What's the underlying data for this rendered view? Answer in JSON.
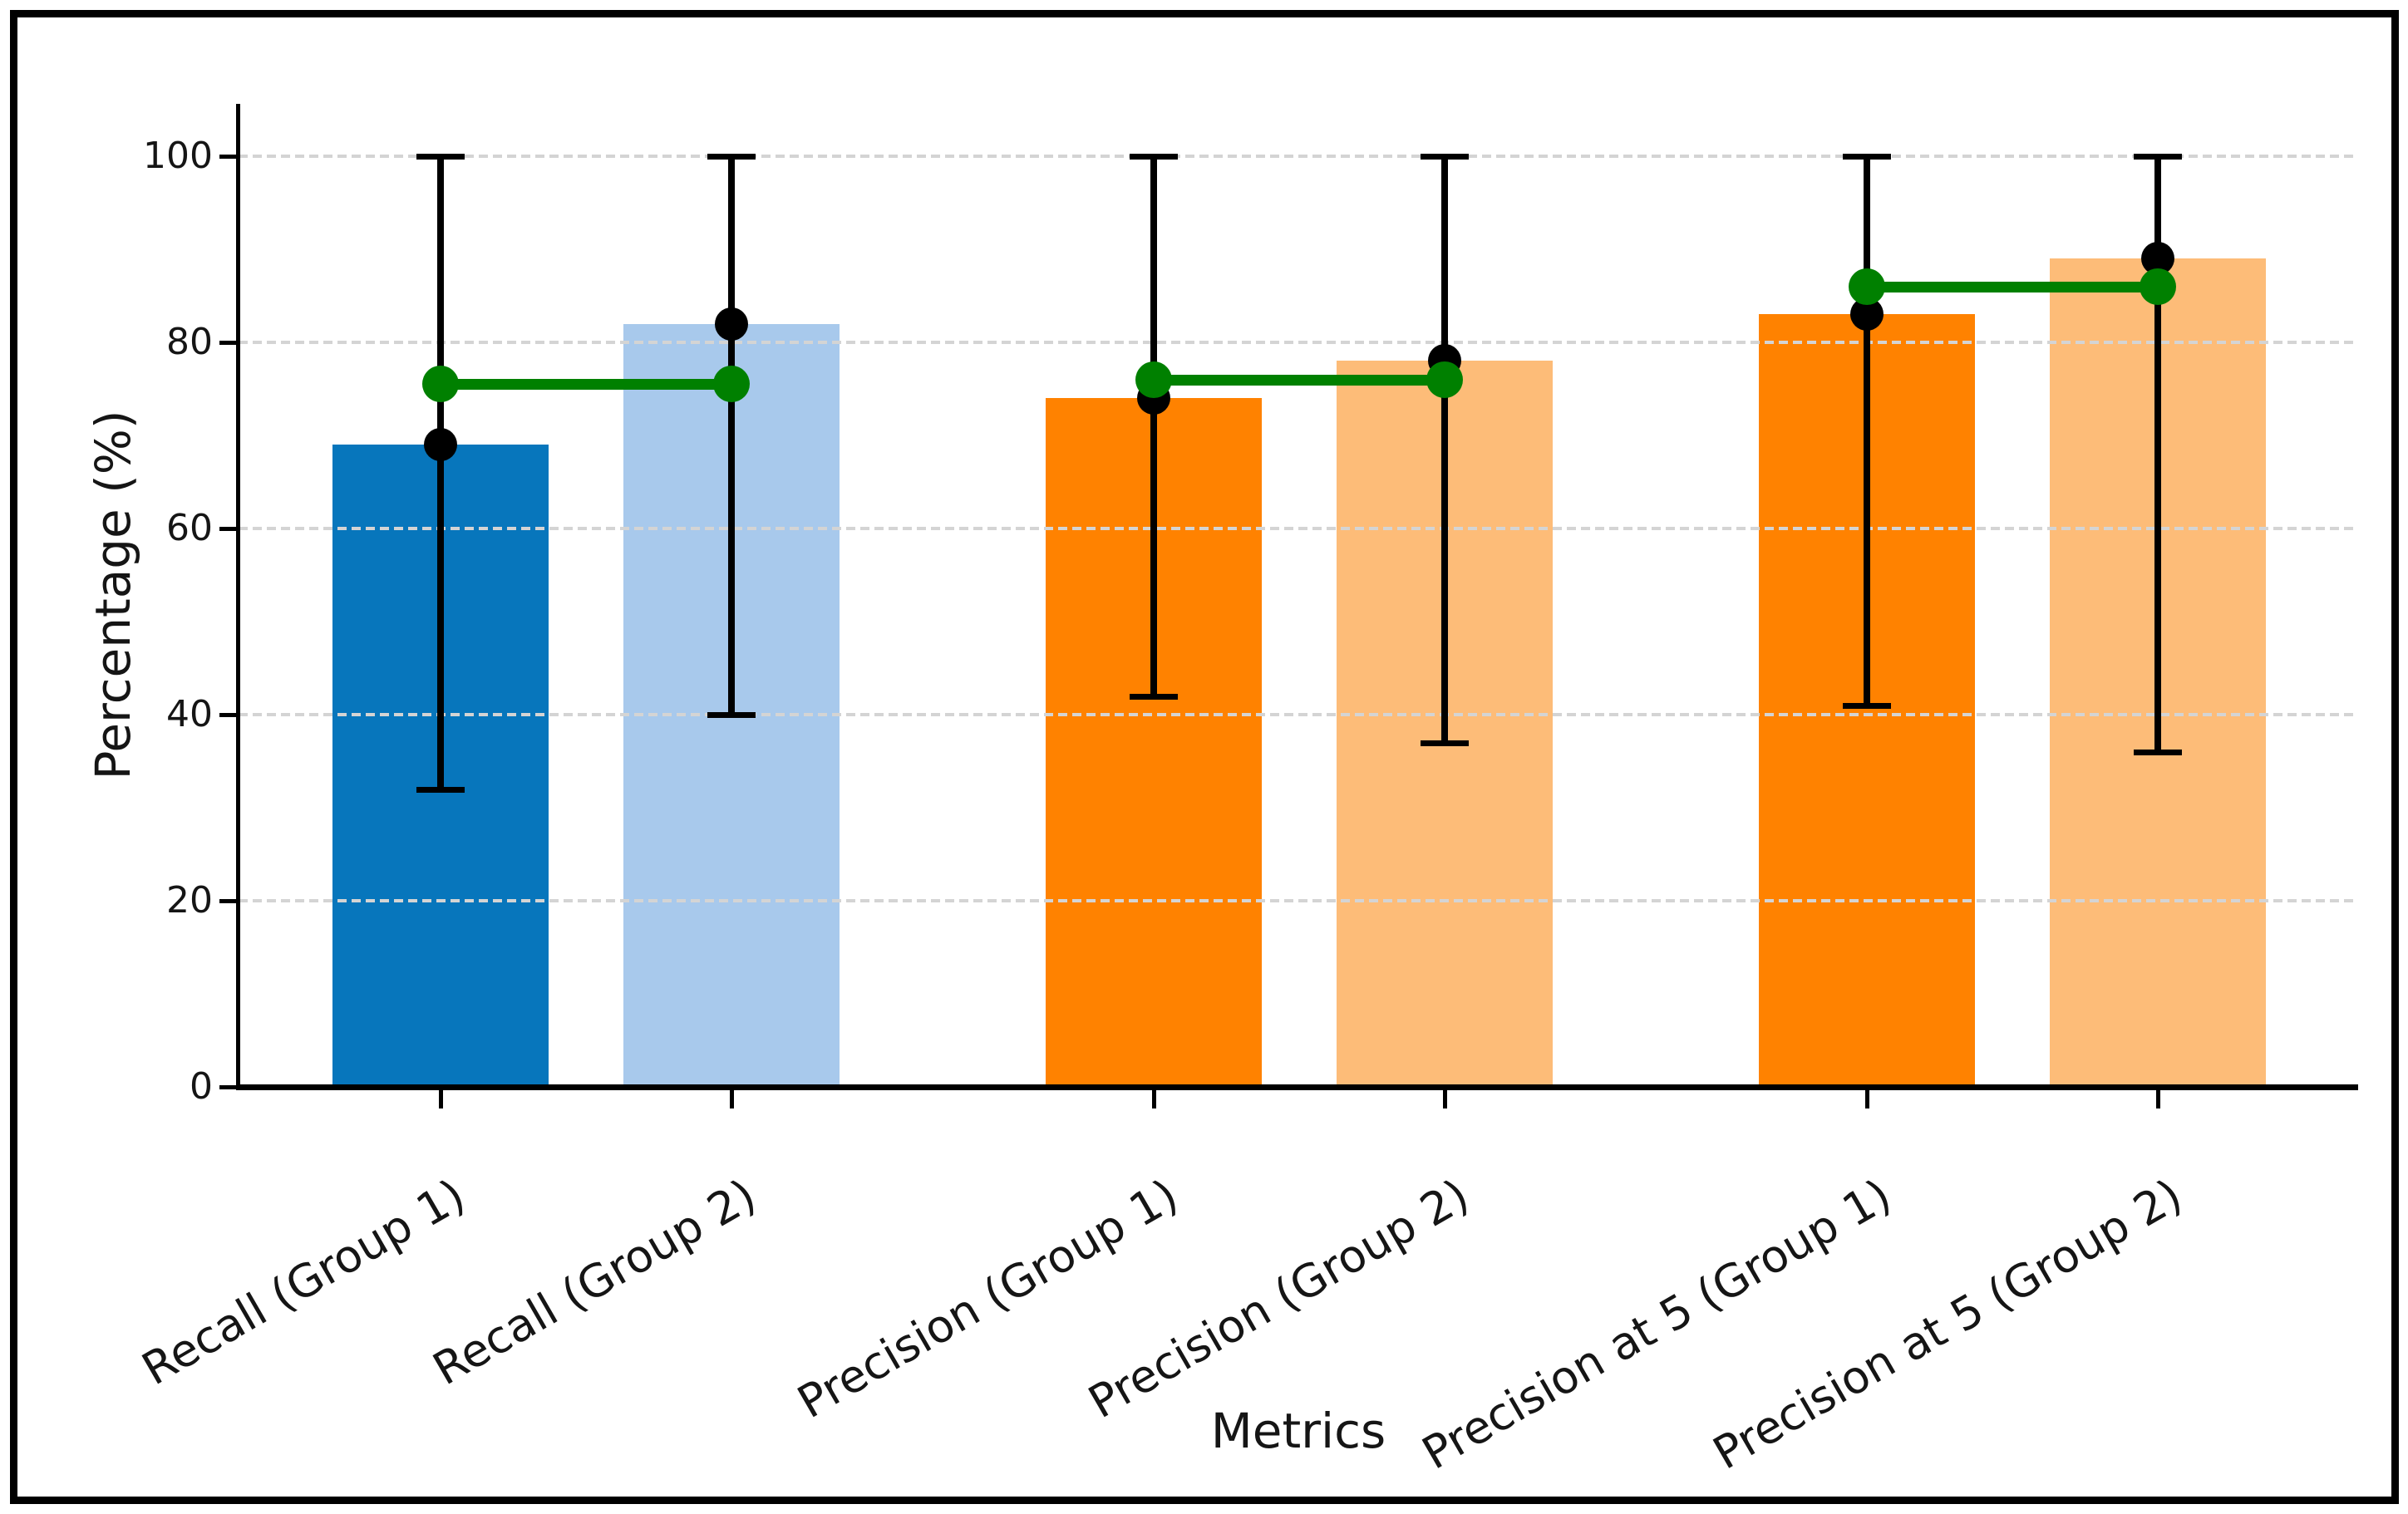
{
  "chart_data": {
    "type": "bar",
    "title": "",
    "xlabel": "Metrics",
    "ylabel": "Percentage (%)",
    "ylim": [
      0,
      100
    ],
    "yticks": [
      0,
      20,
      40,
      60,
      80,
      100
    ],
    "grid": "horizontal-dashed",
    "legend_position": "none",
    "categories": [
      "Recall (Group 1)",
      "Recall (Group 2)",
      "Precision (Group 1)",
      "Precision (Group 2)",
      "Precision at 5 (Group 1)",
      "Precision at 5 (Group 2)"
    ],
    "bars": [
      {
        "label": "Recall (Group 1)",
        "value": 69,
        "error_low": 32,
        "error_high": 100,
        "color": "#0776bc"
      },
      {
        "label": "Recall (Group 2)",
        "value": 82,
        "error_low": 40,
        "error_high": 100,
        "color": "#a8c9ec"
      },
      {
        "label": "Precision (Group 1)",
        "value": 74,
        "error_low": 42,
        "error_high": 100,
        "color": "#ff8200"
      },
      {
        "label": "Precision (Group 2)",
        "value": 78,
        "error_low": 37,
        "error_high": 100,
        "color": "#fdbc78"
      },
      {
        "label": "Precision at 5 (Group 1)",
        "value": 83,
        "error_low": 41,
        "error_high": 100,
        "color": "#ff8200"
      },
      {
        "label": "Precision at 5 (Group 2)",
        "value": 89,
        "error_low": 36,
        "error_high": 100,
        "color": "#fdbc78"
      }
    ],
    "mean_markers": [
      69,
      82,
      74,
      78,
      83,
      89
    ],
    "pair_connectors": [
      {
        "bars": [
          0,
          1
        ],
        "value": 75.5
      },
      {
        "bars": [
          2,
          3
        ],
        "value": 76
      },
      {
        "bars": [
          4,
          5
        ],
        "value": 86
      }
    ],
    "colors": {
      "marker": "#000000",
      "error_bar": "#000000",
      "connector": "#008000",
      "grid": "#d4d4d4",
      "axis": "#000000",
      "text": "#151515"
    }
  }
}
